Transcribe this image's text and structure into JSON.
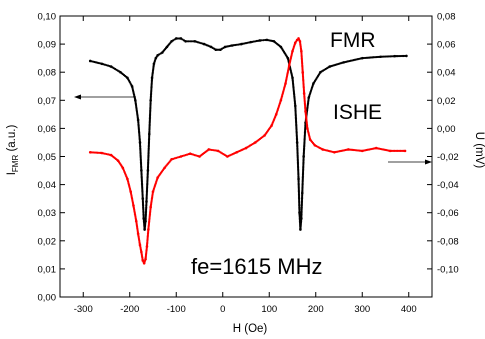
{
  "chart_data": {
    "type": "scatter",
    "xlabel": "H (Oe)",
    "ylabel_left": "I",
    "ylabel_left_sub": "FMR",
    "ylabel_left_suffix": " (a.u.)",
    "ylabel_right": "U (mV)",
    "xlim": [
      -350,
      450
    ],
    "ylim_left": [
      0.0,
      0.1
    ],
    "ylim_right": [
      -0.12,
      0.08
    ],
    "x_ticks": [
      -300,
      -200,
      -100,
      0,
      100,
      200,
      300,
      400
    ],
    "x_tick_labels": [
      "-300",
      "-200",
      "-100",
      "0",
      "100",
      "200",
      "300",
      "400"
    ],
    "y_left_ticks": [
      0.0,
      0.01,
      0.02,
      0.03,
      0.04,
      0.05,
      0.06,
      0.07,
      0.08,
      0.09,
      0.1
    ],
    "y_left_tick_labels": [
      "0,00",
      "0,01",
      "0,02",
      "0,03",
      "0,04",
      "0,05",
      "0,06",
      "0,07",
      "0,08",
      "0,09",
      "0,10"
    ],
    "y_right_ticks": [
      -0.1,
      -0.08,
      -0.06,
      -0.04,
      -0.02,
      0.0,
      0.02,
      0.04,
      0.06,
      0.08
    ],
    "y_right_tick_labels": [
      "-0,10",
      "-0,08",
      "-0,06",
      "-0,04",
      "-0,02",
      "0,00",
      "0,02",
      "0,04",
      "0,06",
      "0,08"
    ],
    "grid": false,
    "annotations": {
      "fmr": "FMR",
      "ishe": "ISHE",
      "freq": "fe=1615 MHz"
    },
    "series": [
      {
        "name": "FMR",
        "axis": "left",
        "color": "#000000",
        "x": [
          -285,
          -260,
          -240,
          -220,
          -205,
          -195,
          -188,
          -182,
          -178,
          -175,
          -172,
          -170,
          -168,
          -166,
          -164,
          -161,
          -158,
          -155,
          -152,
          -148,
          -144,
          -140,
          -130,
          -120,
          -110,
          -100,
          -90,
          -80,
          -60,
          -40,
          -25,
          -15,
          -5,
          5,
          20,
          40,
          60,
          80,
          95,
          110,
          125,
          140,
          150,
          156,
          160,
          163,
          165,
          167,
          169,
          171,
          174,
          178,
          185,
          195,
          210,
          230,
          260,
          300,
          340,
          370,
          395
        ],
        "y": [
          0.084,
          0.083,
          0.082,
          0.08,
          0.078,
          0.075,
          0.07,
          0.063,
          0.055,
          0.045,
          0.035,
          0.028,
          0.024,
          0.027,
          0.034,
          0.045,
          0.058,
          0.07,
          0.078,
          0.083,
          0.085,
          0.086,
          0.087,
          0.089,
          0.091,
          0.092,
          0.092,
          0.091,
          0.091,
          0.09,
          0.089,
          0.088,
          0.088,
          0.089,
          0.0895,
          0.09,
          0.0907,
          0.0913,
          0.0915,
          0.091,
          0.089,
          0.085,
          0.078,
          0.068,
          0.055,
          0.042,
          0.03,
          0.024,
          0.028,
          0.037,
          0.05,
          0.062,
          0.071,
          0.076,
          0.08,
          0.082,
          0.0835,
          0.085,
          0.0855,
          0.0857,
          0.0858
        ]
      },
      {
        "name": "ISHE",
        "axis": "right",
        "color": "#ff0000",
        "x": [
          -285,
          -260,
          -240,
          -225,
          -215,
          -205,
          -198,
          -192,
          -186,
          -182,
          -178,
          -175,
          -172,
          -169,
          -166,
          -163,
          -160,
          -155,
          -150,
          -140,
          -125,
          -110,
          -90,
          -70,
          -50,
          -30,
          -10,
          10,
          30,
          50,
          70,
          90,
          105,
          115,
          125,
          135,
          143,
          150,
          156,
          160,
          163,
          166,
          169,
          172,
          175,
          178,
          182,
          188,
          198,
          215,
          240,
          270,
          300,
          330,
          360,
          392
        ],
        "y": [
          -0.017,
          -0.0175,
          -0.019,
          -0.023,
          -0.028,
          -0.036,
          -0.045,
          -0.055,
          -0.066,
          -0.075,
          -0.083,
          -0.088,
          -0.094,
          -0.096,
          -0.093,
          -0.084,
          -0.072,
          -0.056,
          -0.045,
          -0.035,
          -0.028,
          -0.022,
          -0.02,
          -0.018,
          -0.02,
          -0.015,
          -0.016,
          -0.02,
          -0.017,
          -0.014,
          -0.01,
          -0.005,
          0.002,
          0.01,
          0.02,
          0.032,
          0.045,
          0.055,
          0.061,
          0.063,
          0.064,
          0.062,
          0.055,
          0.04,
          0.025,
          0.012,
          0.0,
          -0.008,
          -0.012,
          -0.015,
          -0.017,
          -0.015,
          -0.016,
          -0.014,
          -0.016,
          -0.016
        ]
      }
    ]
  }
}
